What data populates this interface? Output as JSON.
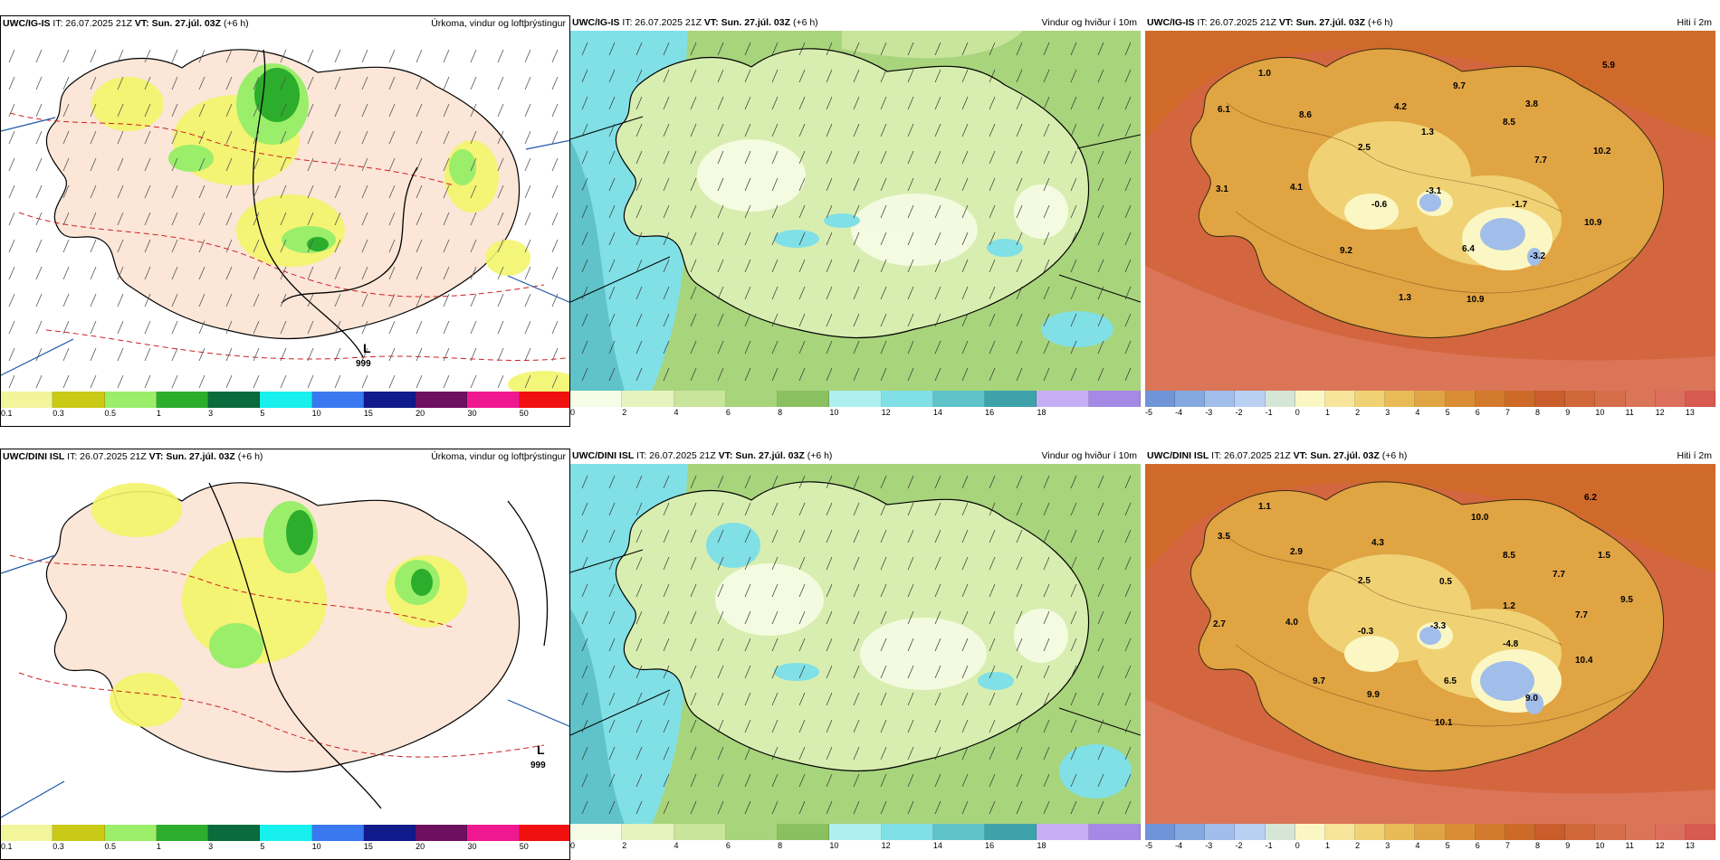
{
  "rows": [
    {
      "model": "UWC/IG-IS",
      "it_label": "IT: 26.07.2025 21Z",
      "vt_label": "VT: Sun. 27.júl. 03Z",
      "lead": "(+6 h)",
      "precip_title": "Úrkoma, vindur og loftþrýstingur",
      "wind_title": "Vindur og hviður í 10m",
      "temp_title": "Hiti í 2m",
      "low_label": "L",
      "low_value": "999",
      "temps": [
        "1.0",
        "9.7",
        "5.9",
        "6.1",
        "8.6",
        "4.2",
        "3.8",
        "1.3",
        "8.5",
        "2.5",
        "10.2",
        "7.7",
        "3.1",
        "4.1",
        "-0.6",
        "-3.1",
        "-1.7",
        "10.9",
        "9.2",
        "6.4",
        "-3.2",
        "1.3",
        "10.9"
      ]
    },
    {
      "model": "UWC/DINI ISL",
      "it_label": "IT: 26.07.2025 21Z",
      "vt_label": "VT: Sun. 27.júl. 03Z",
      "lead": "(+6 h)",
      "precip_title": "Úrkoma, vindur og loftþrýstingur",
      "wind_title": "Vindur og hviður í 10m",
      "temp_title": "Hiti í 2m",
      "low_label": "L",
      "low_value": "999",
      "temps": [
        "1.1",
        "10.0",
        "6.2",
        "3.5",
        "4.3",
        "2.9",
        "8.5",
        "1.5",
        "2.5",
        "0.5",
        "7.7",
        "1.2",
        "2.7",
        "4.0",
        "-0.3",
        "-3.3",
        "7.7",
        "9.5",
        "-4.8",
        "10.4",
        "9.7",
        "6.5",
        "9.9",
        "9.0",
        "10.1"
      ]
    }
  ],
  "legends": {
    "precip": {
      "ticks": [
        "0.1",
        "0.3",
        "0.5",
        "1",
        "3",
        "5",
        "10",
        "15",
        "20",
        "30",
        "50"
      ],
      "colors": [
        "#f2f59a",
        "#c9c916",
        "#9aee6a",
        "#2cad2c",
        "#0a6b3c",
        "#18f0ee",
        "#3a78f0",
        "#111a8a",
        "#6e1060",
        "#f01890",
        "#f01010"
      ]
    },
    "wind": {
      "ticks": [
        "0",
        "2",
        "4",
        "6",
        "8",
        "10",
        "12",
        "14",
        "16",
        "18"
      ],
      "colors": [
        "#f7fce6",
        "#e6f3bf",
        "#c8e59b",
        "#a8d47c",
        "#8bc060",
        "#aef0f0",
        "#80e0e6",
        "#5fc3c9",
        "#3ea2aa",
        "#c6aef5",
        "#a48ae6"
      ]
    },
    "temp": {
      "ticks": [
        "-5",
        "-4",
        "-3",
        "-2",
        "-1",
        "0",
        "1",
        "2",
        "3",
        "4",
        "5",
        "6",
        "7",
        "8",
        "9",
        "10",
        "11",
        "12",
        "13"
      ],
      "colors": [
        "#6f95d8",
        "#86a8e0",
        "#a1bdea",
        "#bad0f2",
        "#d6e6d6",
        "#fbf7c4",
        "#f6e59a",
        "#f0d274",
        "#e8bb56",
        "#e0a443",
        "#d98e36",
        "#d47a2e",
        "#cd6a28",
        "#c95d2c",
        "#d0683a",
        "#d66e4b",
        "#db7558",
        "#dc6e5c",
        "#d85a50"
      ]
    }
  }
}
